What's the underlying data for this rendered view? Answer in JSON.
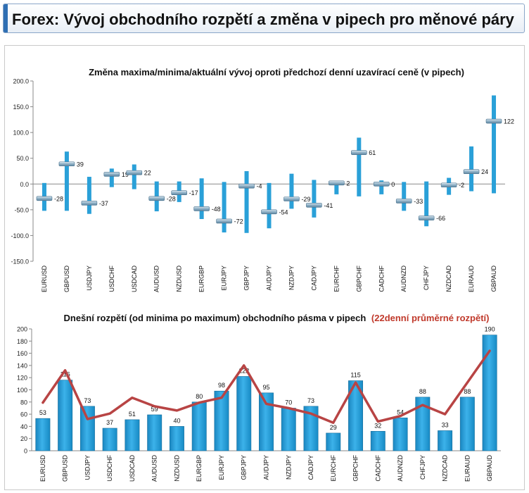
{
  "header": {
    "title": "Forex: Vývoj obchodního rozpětí a změna v pipech pro měnové páry"
  },
  "colors": {
    "bar": "#2aa0d8",
    "bar_dark": "#1a7fb2",
    "avg_line": "#b84444",
    "avg_title": "#c0392b",
    "marker": "#9ab3c7"
  },
  "chart_data": [
    {
      "type": "bar",
      "title": "Změna maxima/minima/aktuální vývoj oproti předchozí denní uzavírací ceně (v pipech)",
      "categories": [
        "EURUSD",
        "GBPUSD",
        "USDJPY",
        "USDCHF",
        "USDCAD",
        "AUDUSD",
        "NZDUSD",
        "EURGBP",
        "EURJPY",
        "GBPJPY",
        "AUDJPY",
        "NZDJPY",
        "CADJPY",
        "EURCHF",
        "GBPCHF",
        "CADCHF",
        "AUDNZD",
        "CHFJPY",
        "NZDCAD",
        "EURAUD",
        "GBPAUD"
      ],
      "high": [
        2,
        63,
        14,
        30,
        38,
        5,
        5,
        11,
        4,
        25,
        2,
        20,
        8,
        6,
        90,
        7,
        4,
        5,
        12,
        73,
        172
      ],
      "low": [
        -52,
        -52,
        -58,
        -6,
        -10,
        -53,
        -35,
        -68,
        -94,
        -95,
        -86,
        -48,
        -65,
        -20,
        -24,
        -20,
        -52,
        -82,
        -21,
        -14,
        -18
      ],
      "current": [
        -28,
        39,
        -37,
        19,
        22,
        -28,
        -17,
        -48,
        -72,
        -4,
        -54,
        -29,
        -41,
        2,
        61,
        0,
        -33,
        -66,
        -2,
        24,
        122
      ],
      "labels": [
        "-28",
        "39",
        "-37",
        "19",
        "22",
        "-28",
        "-17",
        "-48",
        "-72",
        "-4",
        "-54",
        "-29",
        "-41",
        "2",
        "61",
        "0",
        "-33",
        "-66",
        "-2",
        "24",
        "122"
      ],
      "ylim": [
        -150,
        200
      ],
      "yticks": [
        "200.0",
        "150.0",
        "100.0",
        "50.0",
        "0.0",
        "-50.0",
        "-100.0",
        "-150.0"
      ]
    },
    {
      "type": "bar",
      "title": "Dnešní rozpětí (od minima po maximum) obchodního pásma v pipech",
      "title_suffix": "(22denní průměrné rozpětí)",
      "categories": [
        "EURUSD",
        "GBPUSD",
        "USDJPY",
        "USDCHF",
        "USDCAD",
        "AUDUSD",
        "NZDUSD",
        "EURGBP",
        "EURJPY",
        "GBPJPY",
        "AUDJPY",
        "NZDJPY",
        "CADJPY",
        "EURCHF",
        "GBPCHF",
        "CADCHF",
        "AUDNZD",
        "CHFJPY",
        "NZDCAD",
        "EURAUD",
        "GBPAUD"
      ],
      "series": [
        {
          "values": [
            53,
            116,
            73,
            37,
            51,
            59,
            40,
            80,
            98,
            122,
            95,
            70,
            73,
            29,
            115,
            32,
            54,
            88,
            33,
            88,
            190
          ]
        },
        {
          "values": [
            79,
            132,
            52,
            61,
            87,
            73,
            66,
            79,
            87,
            140,
            77,
            70,
            61,
            46,
            112,
            48,
            57,
            75,
            60,
            112,
            164
          ]
        }
      ],
      "labels": [
        "53",
        "116",
        "73",
        "37",
        "51",
        "59",
        "40",
        "80",
        "98",
        "122",
        "95",
        "70",
        "73",
        "29",
        "115",
        "32",
        "54",
        "88",
        "33",
        "88",
        "190"
      ],
      "ylim": [
        0,
        200
      ],
      "yticks": [
        "200",
        "180",
        "160",
        "140",
        "120",
        "100",
        "80",
        "60",
        "40",
        "20",
        "0"
      ]
    }
  ]
}
